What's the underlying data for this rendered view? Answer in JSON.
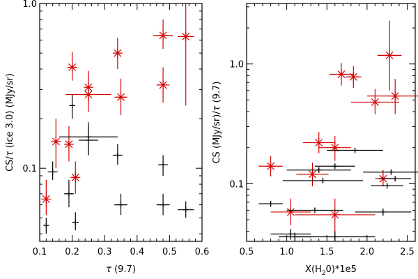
{
  "chart_data": [
    {
      "type": "scatter",
      "id": "left",
      "xlabel_prefix": "τ",
      "xlabel_suffix": " (9.7)",
      "ylabel_prefix": "CS/",
      "ylabel_mid": "τ",
      "ylabel_suffix": " (ice 3.0)  (MJy/sr)",
      "xlim": [
        0.1,
        0.6
      ],
      "ylim": [
        0.036,
        1.0
      ],
      "yscale": "log",
      "xticks": [
        0.1,
        0.2,
        0.3,
        0.4,
        0.5,
        0.6
      ],
      "xtick_labels": [
        "0.1",
        "0.2",
        "0.3",
        "0.4",
        "0.5",
        "0.6"
      ],
      "yticks": [
        0.1,
        1.0
      ],
      "ytick_labels": [
        "0.1",
        "1.0"
      ],
      "series": [
        {
          "name": "red",
          "color": "#d40000",
          "marker": "asterisk",
          "points": [
            {
              "x": 0.12,
              "y": 0.065,
              "xerr": 0.005,
              "ylo": 0.052,
              "yhi": 0.085
            },
            {
              "x": 0.15,
              "y": 0.145,
              "xerr": 0.015,
              "ylo": 0.1,
              "yhi": 0.2
            },
            {
              "x": 0.19,
              "y": 0.14,
              "xerr": 0.015,
              "ylo": 0.11,
              "yhi": 0.18
            },
            {
              "x": 0.2,
              "y": 0.41,
              "xerr": 0.008,
              "ylo": 0.34,
              "yhi": 0.51
            },
            {
              "x": 0.21,
              "y": 0.088,
              "xerr": 0.01,
              "ylo": 0.07,
              "yhi": 0.11
            },
            {
              "x": 0.25,
              "y": 0.31,
              "xerr": 0.01,
              "ylo": 0.25,
              "yhi": 0.39
            },
            {
              "x": 0.25,
              "y": 0.28,
              "xerr": 0.07,
              "ylo": 0.22,
              "yhi": 0.36
            },
            {
              "x": 0.34,
              "y": 0.5,
              "xerr": 0.01,
              "ylo": 0.4,
              "yhi": 0.62
            },
            {
              "x": 0.35,
              "y": 0.27,
              "xerr": 0.02,
              "ylo": 0.21,
              "yhi": 0.35
            },
            {
              "x": 0.48,
              "y": 0.64,
              "xerr": 0.03,
              "ylo": 0.53,
              "yhi": 0.8
            },
            {
              "x": 0.48,
              "y": 0.32,
              "xerr": 0.02,
              "ylo": 0.25,
              "yhi": 0.41
            },
            {
              "x": 0.55,
              "y": 0.63,
              "xerr": 0.025,
              "ylo": 0.24,
              "yhi": 1.0
            }
          ]
        },
        {
          "name": "black",
          "color": "#000000",
          "marker": "plus",
          "points": [
            {
              "x": 0.12,
              "y": 0.045,
              "xerr": 0.005,
              "ylo": 0.04,
              "yhi": 0.05
            },
            {
              "x": 0.14,
              "y": 0.095,
              "xerr": 0.015,
              "ylo": 0.085,
              "yhi": 0.11
            },
            {
              "x": 0.19,
              "y": 0.07,
              "xerr": 0.015,
              "ylo": 0.058,
              "yhi": 0.085
            },
            {
              "x": 0.2,
              "y": 0.24,
              "xerr": 0.008,
              "ylo": 0.2,
              "yhi": 0.28
            },
            {
              "x": 0.21,
              "y": 0.047,
              "xerr": 0.01,
              "ylo": 0.042,
              "yhi": 0.054
            },
            {
              "x": 0.25,
              "y": 0.155,
              "xerr": 0.09,
              "ylo": 0.12,
              "yhi": 0.19
            },
            {
              "x": 0.25,
              "y": 0.148,
              "xerr": 0.03,
              "ylo": 0.12,
              "yhi": 0.18
            },
            {
              "x": 0.34,
              "y": 0.12,
              "xerr": 0.015,
              "ylo": 0.105,
              "yhi": 0.14
            },
            {
              "x": 0.35,
              "y": 0.06,
              "xerr": 0.02,
              "ylo": 0.052,
              "yhi": 0.07
            },
            {
              "x": 0.48,
              "y": 0.105,
              "xerr": 0.015,
              "ylo": 0.09,
              "yhi": 0.12
            },
            {
              "x": 0.48,
              "y": 0.06,
              "xerr": 0.02,
              "ylo": 0.052,
              "yhi": 0.07
            },
            {
              "x": 0.55,
              "y": 0.056,
              "xerr": 0.025,
              "ylo": 0.05,
              "yhi": 0.063
            }
          ]
        }
      ]
    },
    {
      "type": "scatter",
      "id": "right",
      "xlabel_prefix": "X(H",
      "xlabel_sub": "2",
      "xlabel_suffix": "0)*1e5",
      "ylabel_prefix": "CS  (MJy/sr)/",
      "ylabel_mid": "τ",
      "ylabel_suffix": " (9.7)",
      "xlim": [
        0.5,
        2.6
      ],
      "ylim": [
        0.033,
        3.2
      ],
      "yscale": "log",
      "xticks": [
        0.5,
        1.0,
        1.5,
        2.0,
        2.5
      ],
      "xtick_labels": [
        "0.5",
        "1.0",
        "1.5",
        "2.0",
        "2.5"
      ],
      "yticks": [
        0.1,
        1.0
      ],
      "ytick_labels": [
        "0.1",
        "1.0"
      ],
      "series": [
        {
          "name": "red",
          "color": "#d40000",
          "marker": "asterisk",
          "points": [
            {
              "x": 0.8,
              "y": 0.14,
              "xerr": 0.15,
              "ylo": 0.115,
              "yhi": 0.17
            },
            {
              "x": 1.05,
              "y": 0.058,
              "xerr": 0.25,
              "ylo": 0.045,
              "yhi": 0.075
            },
            {
              "x": 1.32,
              "y": 0.12,
              "xerr": 0.2,
              "ylo": 0.095,
              "yhi": 0.15
            },
            {
              "x": 1.4,
              "y": 0.22,
              "xerr": 0.2,
              "ylo": 0.18,
              "yhi": 0.27
            },
            {
              "x": 1.6,
              "y": 0.2,
              "xerr": 0.2,
              "ylo": 0.155,
              "yhi": 0.25
            },
            {
              "x": 1.6,
              "y": 0.055,
              "xerr": 0.5,
              "ylo": 0.035,
              "yhi": 0.075
            },
            {
              "x": 1.68,
              "y": 0.82,
              "xerr": 0.15,
              "ylo": 0.66,
              "yhi": 1.02
            },
            {
              "x": 1.83,
              "y": 0.78,
              "xerr": 0.1,
              "ylo": 0.63,
              "yhi": 0.96
            },
            {
              "x": 2.1,
              "y": 0.48,
              "xerr": 0.3,
              "ylo": 0.38,
              "yhi": 0.62
            },
            {
              "x": 2.2,
              "y": 0.11,
              "xerr": 0.1,
              "ylo": 0.095,
              "yhi": 0.13
            },
            {
              "x": 2.28,
              "y": 1.18,
              "xerr": 0.15,
              "ylo": 0.6,
              "yhi": 2.3
            },
            {
              "x": 2.35,
              "y": 0.54,
              "xerr": 0.35,
              "ylo": 0.38,
              "yhi": 0.75
            }
          ]
        },
        {
          "name": "black",
          "color": "#000000",
          "marker": "plus",
          "points": [
            {
              "x": 0.8,
              "y": 0.068,
              "xerr": 0.15,
              "ylo": 0.064,
              "yhi": 0.072
            },
            {
              "x": 1.05,
              "y": 0.038,
              "xerr": 0.25,
              "ylo": 0.034,
              "yhi": 0.042
            },
            {
              "x": 1.1,
              "y": 0.036,
              "xerr": 0.2,
              "ylo": 0.033,
              "yhi": 0.039
            },
            {
              "x": 1.35,
              "y": 0.06,
              "xerr": 0.35,
              "ylo": 0.057,
              "yhi": 0.063
            },
            {
              "x": 1.4,
              "y": 0.13,
              "xerr": 0.4,
              "ylo": 0.124,
              "yhi": 0.137
            },
            {
              "x": 1.45,
              "y": 0.106,
              "xerr": 0.5,
              "ylo": 0.101,
              "yhi": 0.112
            },
            {
              "x": 1.6,
              "y": 0.14,
              "xerr": 0.25,
              "ylo": 0.134,
              "yhi": 0.147
            },
            {
              "x": 1.6,
              "y": 0.036,
              "xerr": 0.5,
              "ylo": 0.033,
              "yhi": 0.04
            },
            {
              "x": 1.85,
              "y": 0.19,
              "xerr": 0.35,
              "ylo": 0.183,
              "yhi": 0.197
            },
            {
              "x": 2.2,
              "y": 0.058,
              "xerr": 0.35,
              "ylo": 0.054,
              "yhi": 0.062
            },
            {
              "x": 2.25,
              "y": 0.096,
              "xerr": 0.2,
              "ylo": 0.092,
              "yhi": 0.1
            },
            {
              "x": 2.3,
              "y": 0.125,
              "xerr": 0.35,
              "ylo": 0.12,
              "yhi": 0.131
            },
            {
              "x": 2.35,
              "y": 0.11,
              "xerr": 0.2,
              "ylo": 0.105,
              "yhi": 0.115
            }
          ]
        }
      ]
    }
  ]
}
